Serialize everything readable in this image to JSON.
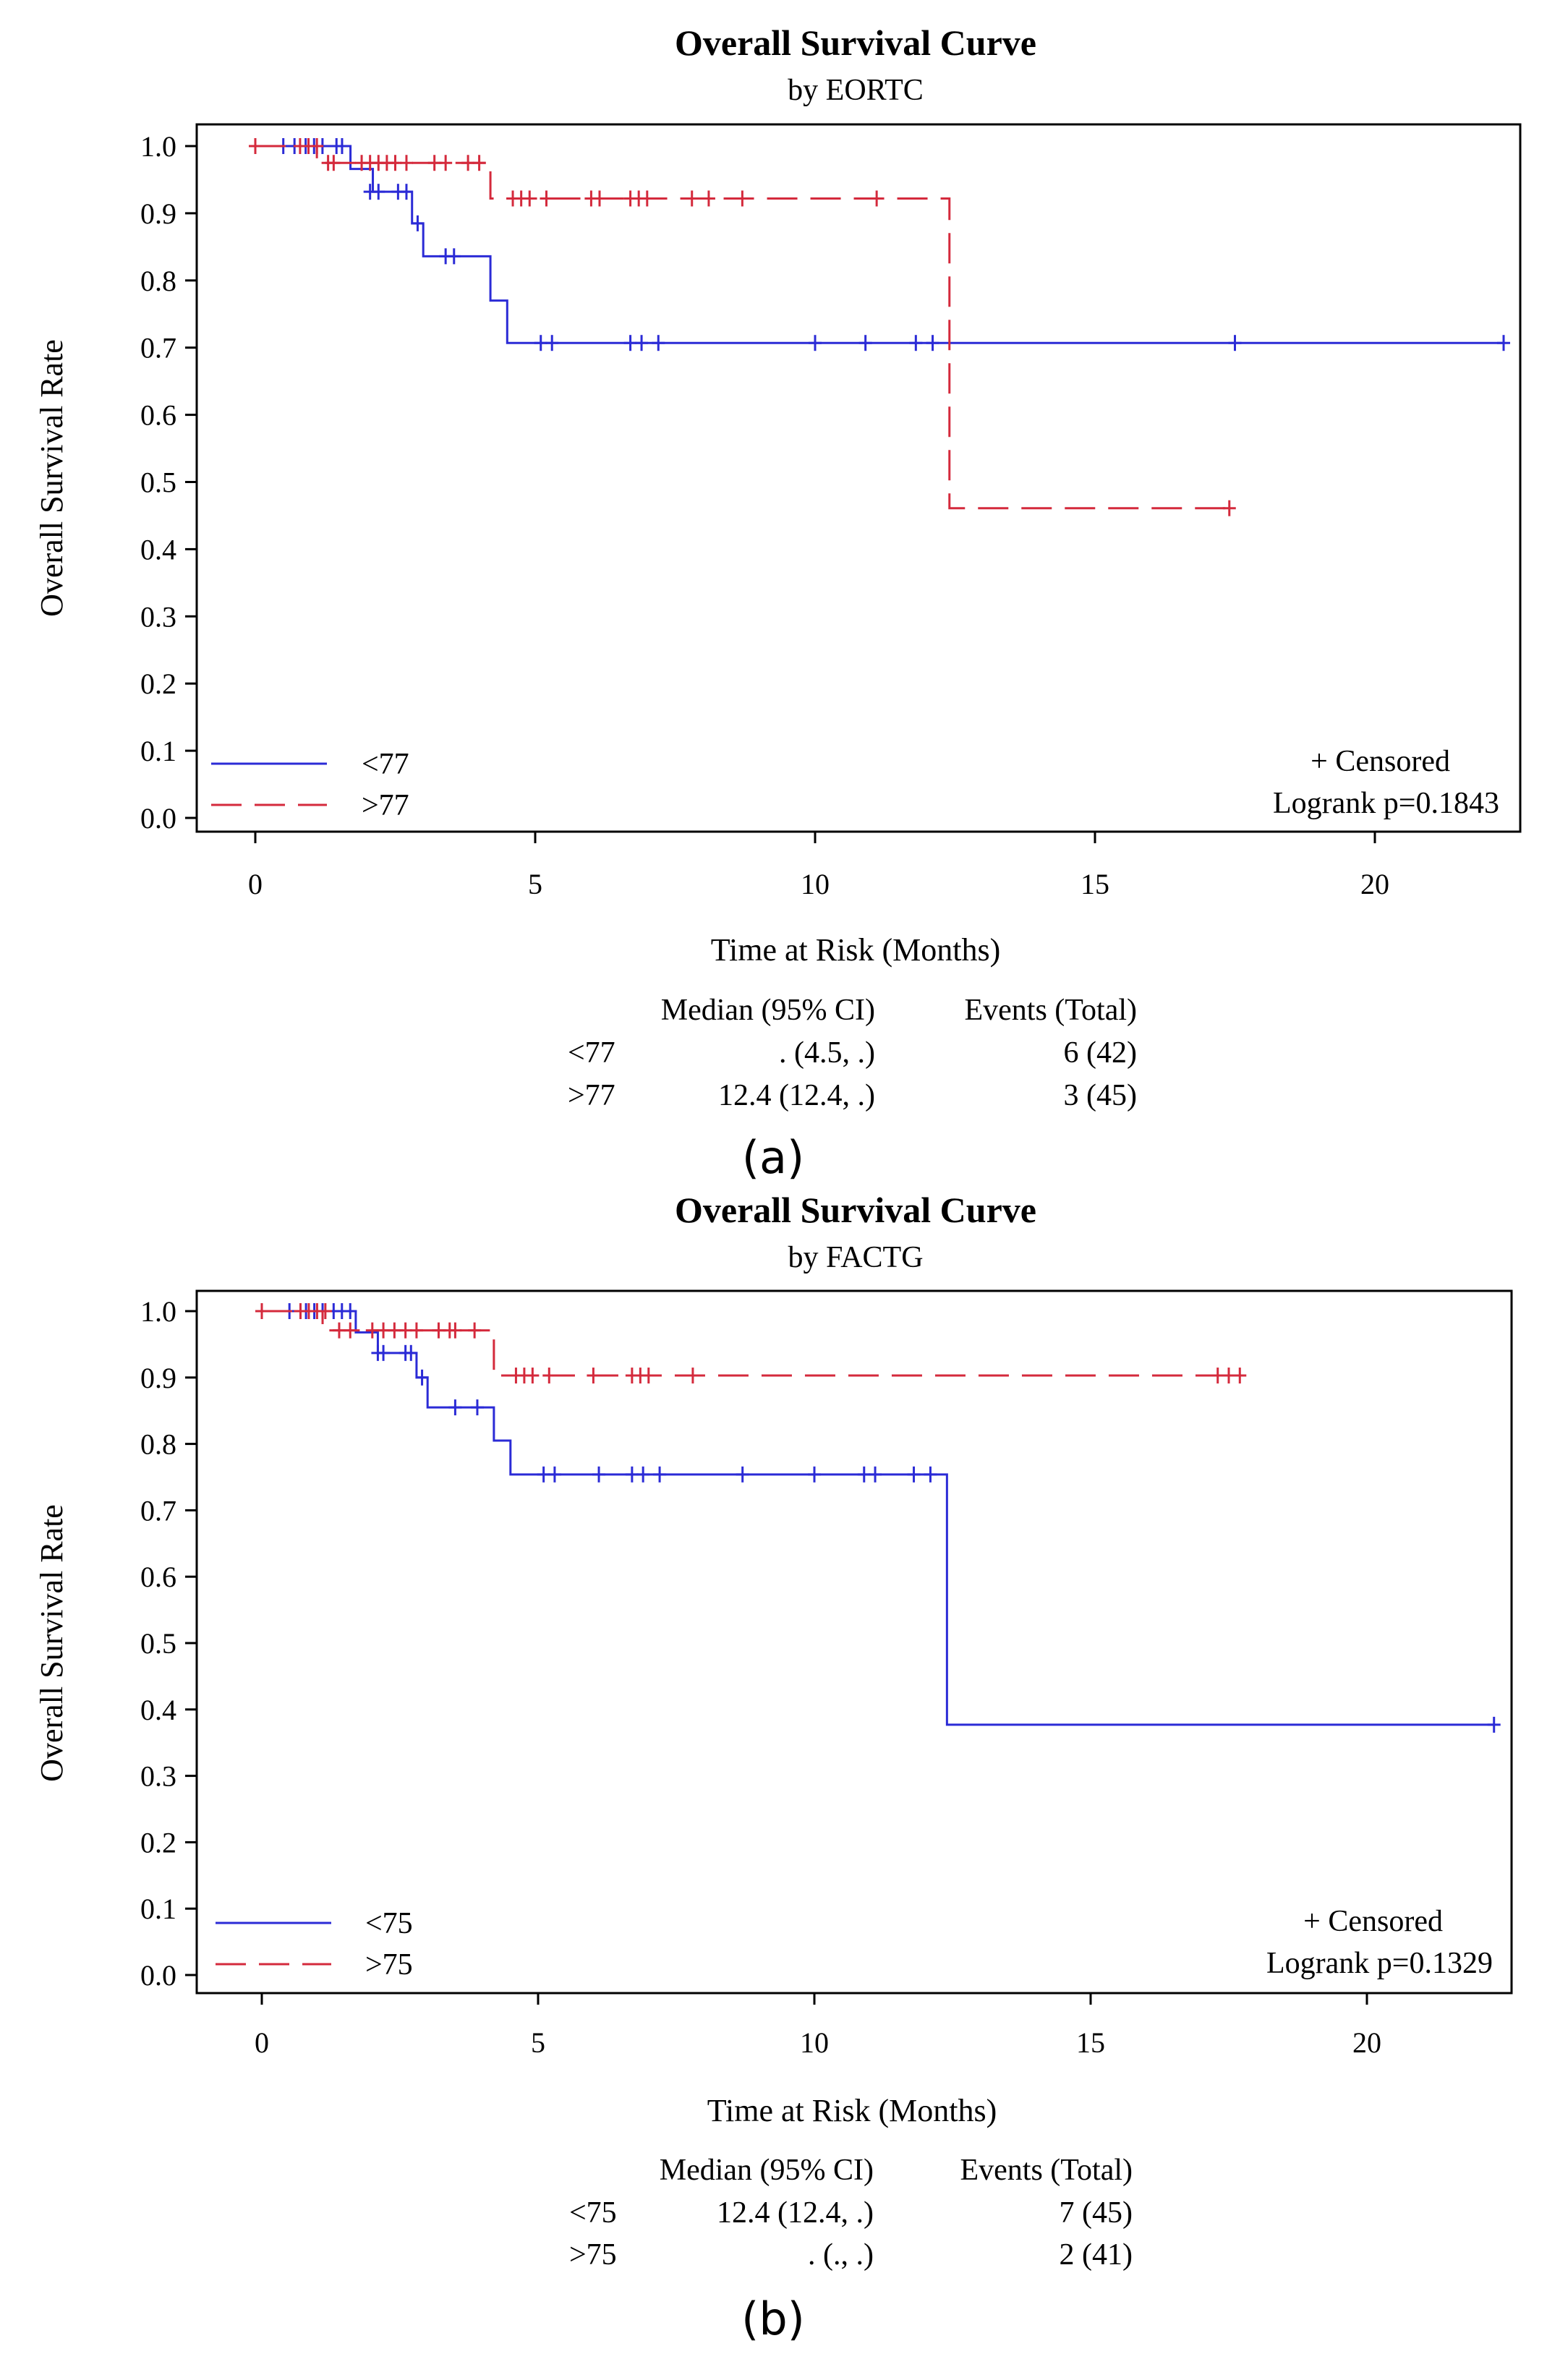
{
  "chart_data": [
    {
      "type": "line",
      "subtype": "kaplan-meier",
      "title": "Overall Survival Curve",
      "subtitle": "by EORTC",
      "xlabel": "Time at Risk (Months)",
      "ylabel": "Overall Survival Rate",
      "xlim": [
        -1,
        22.3
      ],
      "ylim": [
        0,
        1
      ],
      "xticks": [
        0,
        5,
        10,
        15,
        20
      ],
      "yticks": [
        0.0,
        0.1,
        0.2,
        0.3,
        0.4,
        0.5,
        0.6,
        0.7,
        0.8,
        0.9,
        1.0
      ],
      "series": [
        {
          "name": "<77",
          "color": "#2b2bd6",
          "dash": false,
          "steps": [
            [
              0,
              1.0
            ],
            [
              1.7,
              0.966
            ],
            [
              2.1,
              0.932
            ],
            [
              2.8,
              0.885
            ],
            [
              3.0,
              0.836
            ],
            [
              4.2,
              0.77
            ],
            [
              4.5,
              0.707
            ],
            [
              22.3,
              0.707
            ]
          ],
          "censored": [
            [
              0.5,
              1.0
            ],
            [
              0.7,
              1.0
            ],
            [
              0.9,
              1.0
            ],
            [
              1.05,
              1.0
            ],
            [
              1.2,
              1.0
            ],
            [
              1.45,
              1.0
            ],
            [
              1.55,
              1.0
            ],
            [
              2.05,
              0.932
            ],
            [
              2.2,
              0.932
            ],
            [
              2.55,
              0.932
            ],
            [
              2.7,
              0.932
            ],
            [
              2.9,
              0.885
            ],
            [
              3.4,
              0.836
            ],
            [
              3.55,
              0.836
            ],
            [
              5.1,
              0.707
            ],
            [
              5.3,
              0.707
            ],
            [
              6.7,
              0.707
            ],
            [
              6.9,
              0.707
            ],
            [
              7.2,
              0.707
            ],
            [
              10.0,
              0.707
            ],
            [
              10.9,
              0.707
            ],
            [
              11.8,
              0.707
            ],
            [
              12.1,
              0.707
            ],
            [
              17.5,
              0.707
            ],
            [
              22.3,
              0.707
            ]
          ]
        },
        {
          "name": ">77",
          "color": "#d42a3c",
          "dash": true,
          "steps": [
            [
              0,
              1.0
            ],
            [
              1.1,
              0.975
            ],
            [
              4.2,
              0.922
            ],
            [
              12.4,
              0.922
            ],
            [
              12.4,
              0.461
            ],
            [
              17.4,
              0.461
            ]
          ],
          "censored": [
            [
              0.0,
              1.0
            ],
            [
              0.8,
              1.0
            ],
            [
              0.95,
              1.0
            ],
            [
              1.1,
              1.0
            ],
            [
              1.3,
              0.975
            ],
            [
              1.4,
              0.975
            ],
            [
              1.9,
              0.975
            ],
            [
              2.05,
              0.975
            ],
            [
              2.2,
              0.975
            ],
            [
              2.35,
              0.975
            ],
            [
              2.5,
              0.975
            ],
            [
              2.7,
              0.975
            ],
            [
              3.2,
              0.975
            ],
            [
              3.4,
              0.975
            ],
            [
              3.8,
              0.975
            ],
            [
              4.0,
              0.975
            ],
            [
              4.6,
              0.922
            ],
            [
              4.75,
              0.922
            ],
            [
              4.9,
              0.922
            ],
            [
              5.2,
              0.922
            ],
            [
              6.0,
              0.922
            ],
            [
              6.15,
              0.922
            ],
            [
              6.7,
              0.922
            ],
            [
              6.85,
              0.922
            ],
            [
              7.0,
              0.922
            ],
            [
              7.8,
              0.922
            ],
            [
              8.1,
              0.922
            ],
            [
              8.7,
              0.922
            ],
            [
              11.1,
              0.922
            ],
            [
              17.4,
              0.461
            ]
          ]
        }
      ],
      "legend": {
        "placement": "bottom-left"
      },
      "annotation": {
        "censored_label": "+ Censored",
        "logrank": "Logrank p=0.1843"
      },
      "table": {
        "headers": [
          "Median (95% CI)",
          "Events (Total)"
        ],
        "rows": [
          {
            "group": "<77",
            "median": ". (4.5, .)",
            "events": "6 (42)"
          },
          {
            "group": ">77",
            "median": "12.4 (12.4, .)",
            "events": "3 (45)"
          }
        ]
      },
      "panel_label": "(a)"
    },
    {
      "type": "line",
      "subtype": "kaplan-meier",
      "title": "Overall Survival Curve",
      "subtitle": "by FACTG",
      "xlabel": "Time at Risk (Months)",
      "ylabel": "Overall Survival Rate",
      "xlim": [
        -1,
        22.3
      ],
      "ylim": [
        0,
        1
      ],
      "xticks": [
        0,
        5,
        10,
        15,
        20
      ],
      "yticks": [
        0.0,
        0.1,
        0.2,
        0.3,
        0.4,
        0.5,
        0.6,
        0.7,
        0.8,
        0.9,
        1.0
      ],
      "series": [
        {
          "name": "<75",
          "color": "#2b2bd6",
          "dash": false,
          "steps": [
            [
              0,
              1.0
            ],
            [
              1.7,
              0.968
            ],
            [
              2.1,
              0.937
            ],
            [
              2.8,
              0.9
            ],
            [
              3.0,
              0.855
            ],
            [
              4.2,
              0.805
            ],
            [
              4.5,
              0.754
            ],
            [
              12.4,
              0.754
            ],
            [
              12.4,
              0.377
            ],
            [
              22.3,
              0.377
            ]
          ],
          "censored": [
            [
              0.5,
              1.0
            ],
            [
              0.8,
              1.0
            ],
            [
              0.95,
              1.0
            ],
            [
              1.1,
              1.0
            ],
            [
              1.3,
              1.0
            ],
            [
              1.45,
              1.0
            ],
            [
              1.6,
              1.0
            ],
            [
              2.1,
              0.937
            ],
            [
              2.2,
              0.937
            ],
            [
              2.6,
              0.937
            ],
            [
              2.7,
              0.937
            ],
            [
              2.9,
              0.9
            ],
            [
              3.5,
              0.855
            ],
            [
              3.9,
              0.855
            ],
            [
              5.1,
              0.754
            ],
            [
              5.3,
              0.754
            ],
            [
              6.1,
              0.754
            ],
            [
              6.7,
              0.754
            ],
            [
              6.9,
              0.754
            ],
            [
              7.2,
              0.754
            ],
            [
              8.7,
              0.754
            ],
            [
              10.0,
              0.754
            ],
            [
              10.9,
              0.754
            ],
            [
              11.1,
              0.754
            ],
            [
              11.8,
              0.754
            ],
            [
              12.1,
              0.754
            ],
            [
              22.3,
              0.377
            ]
          ]
        },
        {
          "name": ">75",
          "color": "#d42a3c",
          "dash": true,
          "steps": [
            [
              0,
              1.0
            ],
            [
              1.1,
              0.971
            ],
            [
              4.2,
              0.903
            ],
            [
              17.7,
              0.903
            ]
          ],
          "censored": [
            [
              0.0,
              1.0
            ],
            [
              0.7,
              1.0
            ],
            [
              0.85,
              1.0
            ],
            [
              1.0,
              1.0
            ],
            [
              1.15,
              1.0
            ],
            [
              1.4,
              0.971
            ],
            [
              1.6,
              0.971
            ],
            [
              2.0,
              0.971
            ],
            [
              2.2,
              0.971
            ],
            [
              2.4,
              0.971
            ],
            [
              2.6,
              0.971
            ],
            [
              2.8,
              0.971
            ],
            [
              3.2,
              0.971
            ],
            [
              3.4,
              0.971
            ],
            [
              3.5,
              0.971
            ],
            [
              3.85,
              0.971
            ],
            [
              4.6,
              0.903
            ],
            [
              4.75,
              0.903
            ],
            [
              4.9,
              0.903
            ],
            [
              5.2,
              0.903
            ],
            [
              6.0,
              0.903
            ],
            [
              6.7,
              0.903
            ],
            [
              6.85,
              0.903
            ],
            [
              7.0,
              0.903
            ],
            [
              7.8,
              0.903
            ],
            [
              17.3,
              0.903
            ],
            [
              17.5,
              0.903
            ],
            [
              17.7,
              0.903
            ]
          ]
        }
      ],
      "legend": {
        "placement": "bottom-left"
      },
      "annotation": {
        "censored_label": "+ Censored",
        "logrank": "Logrank p=0.1329"
      },
      "table": {
        "headers": [
          "Median (95% CI)",
          "Events (Total)"
        ],
        "rows": [
          {
            "group": "<75",
            "median": "12.4 (12.4, .)",
            "events": "7 (45)"
          },
          {
            "group": ">75",
            "median": ". (., .)",
            "events": "2 (41)"
          }
        ]
      },
      "panel_label": "(b)"
    }
  ]
}
